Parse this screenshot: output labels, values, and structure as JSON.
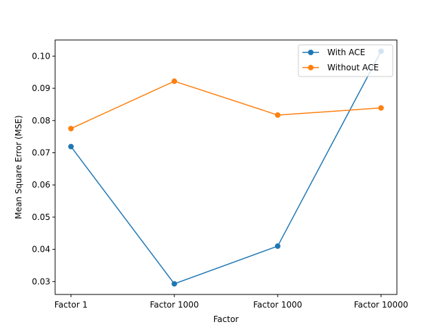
{
  "chart_data": {
    "type": "line",
    "title": "",
    "xlabel": "Factor",
    "ylabel": "Mean Square Error (MSE)",
    "categories": [
      "Factor 1",
      "Factor 1000",
      "Factor 1000",
      "Factor 10000"
    ],
    "ylim": [
      0.026,
      0.105
    ],
    "yticks": [
      0.03,
      0.04,
      0.05,
      0.06,
      0.07,
      0.08,
      0.09,
      0.1
    ],
    "ytick_labels": [
      "0.03",
      "0.04",
      "0.05",
      "0.06",
      "0.07",
      "0.08",
      "0.09",
      "0.10"
    ],
    "grid": false,
    "legend_position": "top-right",
    "series": [
      {
        "name": "With ACE",
        "color": "#1f77b4",
        "values": [
          0.0719,
          0.0293,
          0.041,
          0.1015
        ]
      },
      {
        "name": "Without ACE",
        "color": "#ff7f0e",
        "values": [
          0.0775,
          0.0922,
          0.0817,
          0.0839
        ]
      }
    ]
  }
}
